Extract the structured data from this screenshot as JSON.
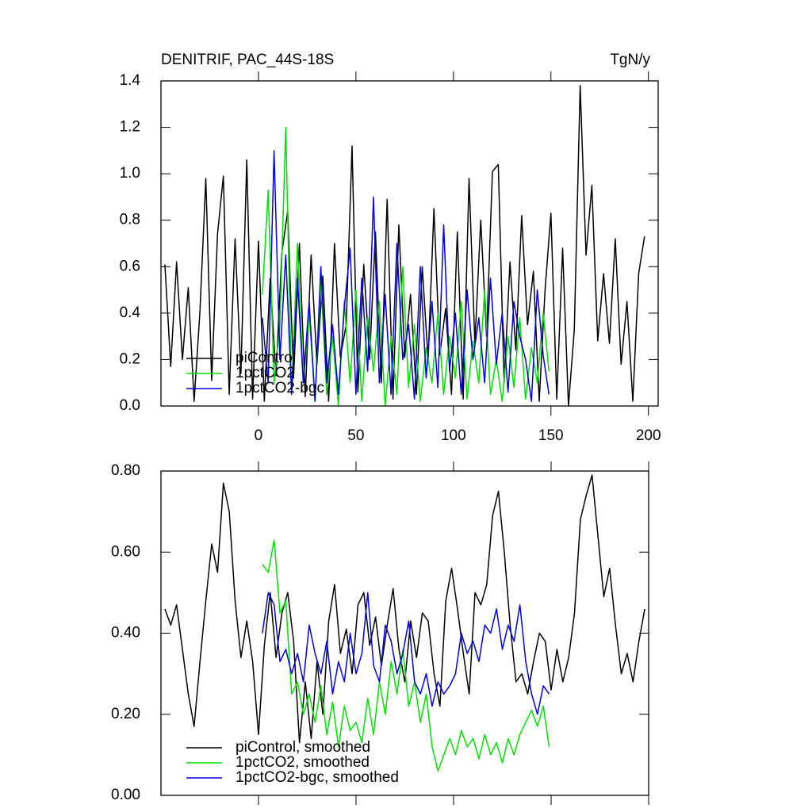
{
  "chart_data": [
    {
      "type": "line",
      "title": "DENITRIF, PAC_44S-18S",
      "units": "TgN/y",
      "xlim": [
        -50,
        205
      ],
      "xticks": [
        0,
        50,
        100,
        150,
        200
      ],
      "show_xtick_labels": true,
      "ylim": [
        0,
        1.4
      ],
      "yticks": [
        {
          "value": 0,
          "label": "0.0"
        },
        0.2,
        0.4,
        0.6,
        0.8,
        {
          "value": 1,
          "label": "1.0"
        },
        1.2,
        1.4
      ],
      "legend": "lower left",
      "series": [
        {
          "name": "piControl",
          "color": "#000000",
          "x": [
            -48,
            -45,
            -42,
            -39,
            -36,
            -33,
            -30,
            -27,
            -24,
            -21,
            -18,
            -15,
            -12,
            -9,
            -6,
            -3,
            0,
            3,
            6,
            9,
            12,
            15,
            18,
            21,
            24,
            27,
            30,
            33,
            36,
            39,
            42,
            45,
            48,
            51,
            54,
            57,
            60,
            63,
            66,
            69,
            72,
            75,
            78,
            81,
            84,
            87,
            90,
            93,
            96,
            99,
            102,
            105,
            108,
            111,
            114,
            117,
            120,
            123,
            126,
            129,
            132,
            135,
            138,
            141,
            144,
            147,
            150,
            153,
            156,
            159,
            162,
            165,
            168,
            171,
            174,
            177,
            180,
            183,
            186,
            189,
            192,
            195,
            198
          ],
          "values": [
            0.61,
            0.17,
            0.62,
            0.2,
            0.51,
            0.02,
            0.41,
            0.98,
            0.11,
            0.74,
            0.99,
            0.05,
            0.72,
            0.14,
            1.06,
            0.03,
            0.71,
            0.02,
            0.55,
            0.13,
            0.66,
            0.84,
            0.12,
            0.7,
            0.04,
            0.65,
            0.18,
            0.56,
            0.02,
            0.7,
            0.21,
            0.35,
            1.12,
            0.06,
            0.61,
            0.2,
            0.75,
            0.1,
            0.89,
            0.03,
            0.78,
            0.21,
            0.48,
            0.05,
            0.6,
            0.2,
            0.85,
            0.22,
            0.42,
            0.05,
            0.75,
            0.03,
            0.98,
            0.27,
            0.8,
            0.3,
            1.01,
            1.04,
            0.1,
            0.62,
            0.24,
            0.82,
            0.35,
            0.58,
            0.02,
            0.5,
            0.83,
            0.03,
            0.68,
            0,
            0.33,
            1.38,
            0.65,
            0.95,
            0.28,
            0.57,
            0.27,
            0.72,
            0.18,
            0.45,
            0.02,
            0.57,
            0.73
          ]
        },
        {
          "name": "1pctCO2",
          "color": "#00e000",
          "x": [
            2,
            5,
            8,
            11,
            14,
            17,
            20,
            23,
            26,
            29,
            32,
            35,
            38,
            41,
            44,
            47,
            50,
            53,
            56,
            59,
            62,
            65,
            68,
            71,
            74,
            77,
            80,
            83,
            86,
            89,
            92,
            95,
            98,
            101,
            104,
            107,
            110,
            113,
            116,
            119,
            122,
            125,
            128,
            131,
            134,
            137,
            140,
            143,
            146,
            149
          ],
          "values": [
            0.48,
            0.93,
            0.1,
            0.35,
            1.2,
            0.05,
            0.7,
            0.1,
            0.4,
            0.02,
            0.55,
            0.05,
            0.3,
            0,
            0.45,
            0.1,
            0.5,
            0.02,
            0.38,
            0.15,
            0.45,
            0,
            0.3,
            0.05,
            0.6,
            0.08,
            0.35,
            0.02,
            0.25,
            0.1,
            0.4,
            0.05,
            0.3,
            0.12,
            0.45,
            0.03,
            0.28,
            0.1,
            0.5,
            0.05,
            0.2,
            0.02,
            0.3,
            0.08,
            0.38,
            0.03,
            0.25,
            0.1,
            0.4,
            0.15
          ]
        },
        {
          "name": "1pctCO2-bgc",
          "color": "#0000e0",
          "x": [
            2,
            5,
            8,
            11,
            14,
            17,
            20,
            23,
            26,
            29,
            32,
            35,
            38,
            41,
            44,
            47,
            50,
            53,
            56,
            59,
            62,
            65,
            68,
            71,
            74,
            77,
            80,
            83,
            86,
            89,
            92,
            95,
            98,
            101,
            104,
            107,
            110,
            113,
            116,
            119,
            122,
            125,
            128,
            131,
            134,
            137,
            140,
            143,
            146,
            149
          ],
          "values": [
            0.38,
            0.1,
            1.1,
            0.2,
            0.65,
            0.05,
            0.55,
            0.1,
            0.45,
            0.02,
            0.6,
            0.1,
            0.35,
            0.05,
            0.42,
            0.68,
            0.05,
            0.55,
            0.15,
            0.9,
            0.1,
            0.48,
            0.05,
            0.7,
            0.2,
            0.35,
            0.03,
            0.6,
            0.12,
            0.45,
            0.08,
            0.78,
            0.15,
            0.4,
            0.05,
            0.5,
            0.2,
            0.38,
            0.1,
            0.55,
            0.18,
            0.4,
            0.06,
            0.45,
            0.3,
            0.2,
            0.02,
            0.5,
            0.22,
            0.05
          ]
        }
      ]
    },
    {
      "type": "line",
      "xlim": [
        -50,
        200
      ],
      "xticks": [
        0,
        50,
        100,
        150,
        200
      ],
      "show_xtick_labels": false,
      "ylim": [
        0,
        0.8
      ],
      "yticks": [
        {
          "value": 0,
          "label": "0.00"
        },
        {
          "value": 0.2,
          "label": "0.20"
        },
        {
          "value": 0.4,
          "label": "0.40"
        },
        {
          "value": 0.6,
          "label": "0.60"
        },
        {
          "value": 0.8,
          "label": "0.80"
        }
      ],
      "legend": "lower left",
      "series": [
        {
          "name": "piControl, smoothed",
          "color": "#000000",
          "x": [
            -48,
            -45,
            -42,
            -39,
            -36,
            -33,
            -30,
            -27,
            -24,
            -21,
            -18,
            -15,
            -12,
            -9,
            -6,
            -3,
            0,
            3,
            6,
            9,
            12,
            15,
            18,
            21,
            24,
            27,
            30,
            33,
            36,
            39,
            42,
            45,
            48,
            51,
            54,
            57,
            60,
            63,
            66,
            69,
            72,
            75,
            78,
            81,
            84,
            87,
            90,
            93,
            96,
            99,
            102,
            105,
            108,
            111,
            114,
            117,
            120,
            123,
            126,
            129,
            132,
            135,
            138,
            141,
            144,
            147,
            150,
            153,
            156,
            159,
            162,
            165,
            168,
            171,
            174,
            177,
            180,
            183,
            186,
            189,
            192,
            195,
            198
          ],
          "values": [
            0.46,
            0.42,
            0.47,
            0.36,
            0.25,
            0.17,
            0.33,
            0.48,
            0.62,
            0.55,
            0.77,
            0.7,
            0.48,
            0.34,
            0.43,
            0.33,
            0.15,
            0.37,
            0.5,
            0.34,
            0.45,
            0.5,
            0.38,
            0.13,
            0.28,
            0.14,
            0.33,
            0.2,
            0.43,
            0.52,
            0.35,
            0.41,
            0.3,
            0.47,
            0.5,
            0.37,
            0.44,
            0.32,
            0.42,
            0.51,
            0.36,
            0.28,
            0.43,
            0.34,
            0.45,
            0.43,
            0.3,
            0.22,
            0.48,
            0.56,
            0.46,
            0.35,
            0.25,
            0.5,
            0.47,
            0.52,
            0.69,
            0.75,
            0.6,
            0.42,
            0.28,
            0.3,
            0.25,
            0.33,
            0.4,
            0.38,
            0.26,
            0.36,
            0.28,
            0.34,
            0.45,
            0.68,
            0.74,
            0.79,
            0.64,
            0.49,
            0.56,
            0.42,
            0.3,
            0.35,
            0.28,
            0.38,
            0.46
          ]
        },
        {
          "name": "1pctCO2, smoothed",
          "color": "#00e000",
          "x": [
            2,
            5,
            8,
            11,
            14,
            17,
            20,
            23,
            26,
            29,
            32,
            35,
            38,
            41,
            44,
            47,
            50,
            53,
            56,
            59,
            62,
            65,
            68,
            71,
            74,
            77,
            80,
            83,
            86,
            89,
            92,
            95,
            98,
            101,
            104,
            107,
            110,
            113,
            116,
            119,
            122,
            125,
            128,
            131,
            134,
            137,
            140,
            143,
            146,
            149
          ],
          "values": [
            0.57,
            0.55,
            0.63,
            0.45,
            0.48,
            0.25,
            0.28,
            0.2,
            0.25,
            0.18,
            0.27,
            0.15,
            0.23,
            0.12,
            0.22,
            0.16,
            0.18,
            0.13,
            0.24,
            0.15,
            0.28,
            0.2,
            0.33,
            0.25,
            0.36,
            0.22,
            0.28,
            0.18,
            0.25,
            0.12,
            0.06,
            0.1,
            0.14,
            0.1,
            0.16,
            0.12,
            0.14,
            0.09,
            0.15,
            0.1,
            0.13,
            0.08,
            0.14,
            0.1,
            0.15,
            0.18,
            0.21,
            0.17,
            0.22,
            0.12
          ]
        },
        {
          "name": "1pctCO2-bgc, smoothed",
          "color": "#0000e0",
          "x": [
            2,
            5,
            8,
            11,
            14,
            17,
            20,
            23,
            26,
            29,
            32,
            35,
            38,
            41,
            44,
            47,
            50,
            53,
            56,
            59,
            62,
            65,
            68,
            71,
            74,
            77,
            80,
            83,
            86,
            89,
            92,
            95,
            98,
            101,
            104,
            107,
            110,
            113,
            116,
            119,
            122,
            125,
            128,
            131,
            134,
            137,
            140,
            143,
            146,
            149
          ],
          "values": [
            0.4,
            0.5,
            0.47,
            0.33,
            0.36,
            0.3,
            0.35,
            0.28,
            0.42,
            0.35,
            0.3,
            0.38,
            0.25,
            0.33,
            0.28,
            0.4,
            0.3,
            0.35,
            0.5,
            0.32,
            0.28,
            0.42,
            0.38,
            0.3,
            0.35,
            0.43,
            0.28,
            0.25,
            0.3,
            0.22,
            0.28,
            0.25,
            0.27,
            0.3,
            0.4,
            0.35,
            0.38,
            0.33,
            0.42,
            0.4,
            0.46,
            0.36,
            0.42,
            0.38,
            0.47,
            0.33,
            0.25,
            0.2,
            0.27,
            0.25
          ]
        }
      ]
    }
  ]
}
